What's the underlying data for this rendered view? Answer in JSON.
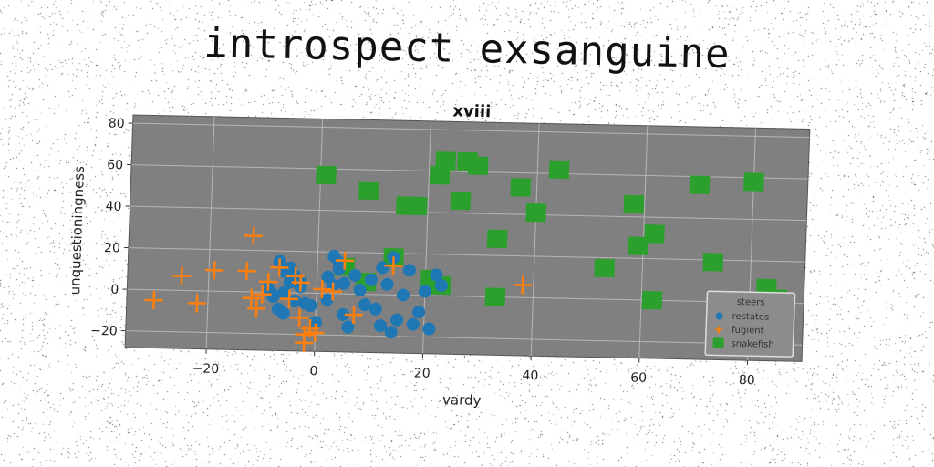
{
  "header": {
    "suptitle": "introspect exsanguine"
  },
  "chart_data": {
    "type": "scatter",
    "title": "xviii",
    "xlabel": "vardy",
    "ylabel": "unquestioningness",
    "xlim": [
      -35,
      90
    ],
    "ylim": [
      -28,
      84
    ],
    "xticks": [
      -20,
      0,
      20,
      40,
      60,
      80
    ],
    "yticks": [
      -20,
      0,
      20,
      40,
      60,
      80
    ],
    "xtick_labels": [
      "−20",
      "0",
      "20",
      "40",
      "60",
      "80"
    ],
    "ytick_labels": [
      "−20",
      "0",
      "20",
      "40",
      "60",
      "80"
    ],
    "grid": true,
    "plot_background": "#808080",
    "legend": {
      "title": "steers",
      "position": "lower-right"
    },
    "series": [
      {
        "name": "restates",
        "marker": "circle",
        "color": "#1f77b4",
        "x": [
          -7,
          -6,
          -5,
          -4,
          -8,
          -3,
          -6,
          -2,
          -5,
          -9,
          -7,
          -4,
          -1,
          -6,
          -3,
          -8,
          0,
          2,
          3,
          4,
          5,
          6,
          3,
          4,
          7,
          8,
          10,
          12,
          14,
          13,
          11,
          15,
          12,
          17,
          20,
          21,
          19,
          22,
          16,
          9,
          2,
          5,
          23,
          18,
          14
        ],
        "y": [
          15,
          10,
          5,
          8,
          -2,
          3,
          0,
          -5,
          12,
          2,
          -8,
          -4,
          -6,
          -10,
          6,
          -1,
          -14,
          8,
          18,
          12,
          5,
          -16,
          4,
          15,
          9,
          2,
          7,
          13,
          18,
          5,
          -7,
          -12,
          -15,
          12,
          2,
          -16,
          -8,
          10,
          0,
          -5,
          -3,
          -10,
          5,
          -14,
          -18
        ]
      },
      {
        "name": "fugient",
        "marker": "plus",
        "color": "#ff7f0e",
        "x": [
          -30,
          -25,
          -22,
          -19,
          -13,
          -12,
          -11,
          -10,
          -9,
          -7,
          -5,
          -4,
          -3,
          -2,
          -1,
          0,
          1,
          3,
          5,
          7,
          38,
          -12,
          -2,
          -3,
          14
        ],
        "y": [
          -5,
          7,
          -6,
          10,
          10,
          27,
          -8,
          -1,
          5,
          12,
          -3,
          8,
          -12,
          -20,
          -17,
          -19,
          2,
          1,
          16,
          -10,
          6,
          -3,
          -24,
          5,
          14
        ]
      },
      {
        "name": "snakefish",
        "marker": "square",
        "color": "#2ca02c",
        "x": [
          1,
          9,
          16,
          18,
          22,
          23,
          26,
          27,
          29,
          33,
          37,
          40,
          44,
          53,
          58,
          59,
          62,
          70,
          73,
          80,
          83,
          85,
          5,
          9,
          14,
          21,
          33,
          62,
          23
        ],
        "y": [
          57,
          50,
          43,
          43,
          58,
          65,
          46,
          65,
          63,
          28,
          53,
          41,
          62,
          15,
          46,
          26,
          32,
          56,
          19,
          58,
          7,
          2,
          13,
          6,
          18,
          8,
          0,
          0,
          5
        ]
      }
    ]
  }
}
